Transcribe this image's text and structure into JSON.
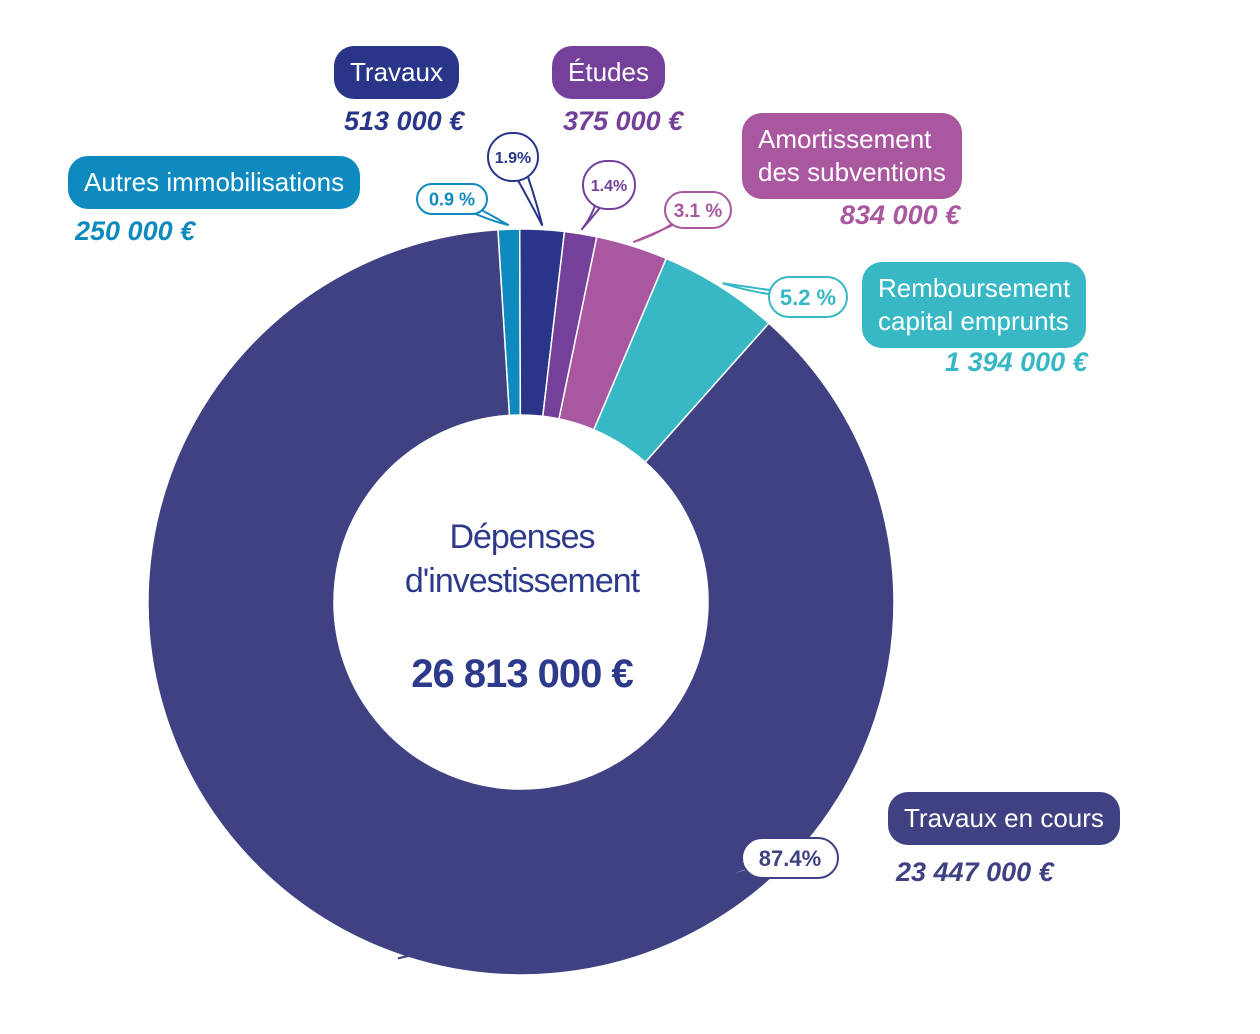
{
  "chart_data": {
    "type": "pie",
    "title": "Dépenses d'investissement",
    "title_lines": [
      "Dépenses",
      "d'investissement"
    ],
    "total_label": "26 813 000 €",
    "slices": [
      {
        "name": "Autres immobilisations",
        "amount_label": "250 000 €",
        "value": 250000,
        "percent_label": "0.9 %",
        "color": "#0e8abf"
      },
      {
        "name": "Travaux",
        "amount_label": "513 000 €",
        "value": 513000,
        "percent_label": "1.9%",
        "color": "#283588"
      },
      {
        "name": "Études",
        "amount_label": "375 000 €",
        "value": 375000,
        "percent_label": "1.4%",
        "color": "#74409a"
      },
      {
        "name": "Amortissement des subventions",
        "name_lines": [
          "Amortissement",
          "des subventions"
        ],
        "amount_label": "834 000 €",
        "value": 834000,
        "percent_label": "3.1 %",
        "color": "#a9579f"
      },
      {
        "name": "Remboursement capital emprunts",
        "name_lines": [
          "Remboursement",
          "capital emprunts"
        ],
        "amount_label": "1 394 000 €",
        "value": 1394000,
        "percent_label": "5.2 %",
        "color": "#37b8c4"
      },
      {
        "name": "Travaux en cours",
        "amount_label": "23 447 000 €",
        "value": 23447000,
        "percent_label": "87.4%",
        "color": "#3f4182"
      }
    ]
  }
}
